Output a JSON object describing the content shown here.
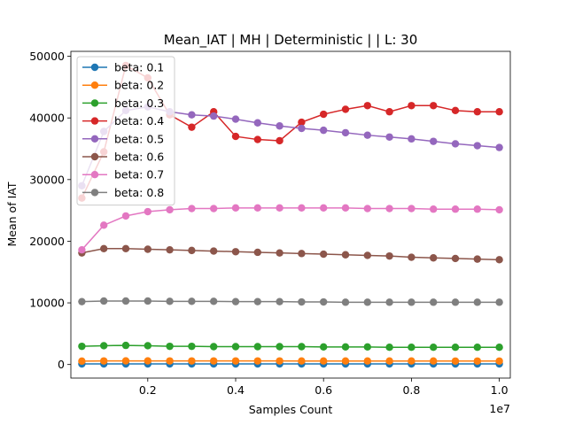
{
  "chart_data": {
    "type": "line",
    "title": "Mean_IAT  | MH | Deterministic |  | L: 30",
    "xlabel": "Samples Count",
    "ylabel": "Mean of IAT",
    "x_offset_label": "1e7",
    "x_scale": 10000000,
    "xlim": [
      0.025,
      1.025
    ],
    "ylim": [
      -2200,
      50800
    ],
    "x_ticks": [
      0.2,
      0.4,
      0.6,
      0.8,
      1.0
    ],
    "x_tick_labels": [
      "0.2",
      "0.4",
      "0.6",
      "0.8",
      "1.0"
    ],
    "y_ticks": [
      0,
      10000,
      20000,
      30000,
      40000,
      50000
    ],
    "y_tick_labels": [
      "0",
      "10000",
      "20000",
      "30000",
      "40000",
      "50000"
    ],
    "grid": false,
    "legend_position": "upper-left",
    "x": [
      0.05,
      0.1,
      0.15,
      0.2,
      0.25,
      0.3,
      0.35,
      0.4,
      0.45,
      0.5,
      0.55,
      0.6,
      0.65,
      0.7,
      0.75,
      0.8,
      0.85,
      0.9,
      0.95,
      1.0
    ],
    "series": [
      {
        "name": "beta: 0.1",
        "color": "#1f77b4",
        "values": [
          100,
          100,
          100,
          100,
          100,
          100,
          100,
          100,
          100,
          100,
          100,
          100,
          100,
          100,
          100,
          100,
          100,
          100,
          100,
          100
        ]
      },
      {
        "name": "beta: 0.2",
        "color": "#ff7f0e",
        "values": [
          550,
          580,
          590,
          590,
          580,
          580,
          580,
          580,
          580,
          580,
          570,
          570,
          570,
          570,
          570,
          570,
          570,
          560,
          560,
          560
        ]
      },
      {
        "name": "beta: 0.3",
        "color": "#2ca02c",
        "values": [
          2950,
          3050,
          3100,
          3050,
          2950,
          2950,
          2900,
          2900,
          2900,
          2900,
          2900,
          2850,
          2850,
          2850,
          2800,
          2800,
          2800,
          2800,
          2800,
          2800
        ]
      },
      {
        "name": "beta: 0.4",
        "color": "#d62728",
        "values": [
          27000,
          34500,
          48500,
          46500,
          40500,
          38500,
          41000,
          37000,
          36500,
          36300,
          39300,
          40600,
          41400,
          42000,
          41000,
          42000,
          42000,
          41200,
          41000,
          41000
        ]
      },
      {
        "name": "beta: 0.5",
        "color": "#9467bd",
        "values": [
          29000,
          37800,
          41200,
          41800,
          41000,
          40500,
          40300,
          39800,
          39200,
          38700,
          38300,
          38000,
          37600,
          37200,
          36900,
          36600,
          36200,
          35800,
          35500,
          35200
        ]
      },
      {
        "name": "beta: 0.6",
        "color": "#8c564b",
        "values": [
          18100,
          18800,
          18800,
          18700,
          18600,
          18500,
          18400,
          18300,
          18200,
          18100,
          18000,
          17900,
          17800,
          17700,
          17600,
          17400,
          17300,
          17200,
          17100,
          17000
        ]
      },
      {
        "name": "beta: 0.7",
        "color": "#e377c2",
        "values": [
          18600,
          22600,
          24100,
          24800,
          25100,
          25300,
          25300,
          25400,
          25400,
          25400,
          25400,
          25400,
          25400,
          25300,
          25300,
          25300,
          25200,
          25200,
          25200,
          25100
        ]
      },
      {
        "name": "beta: 0.8",
        "color": "#7f7f7f",
        "values": [
          10200,
          10300,
          10300,
          10300,
          10250,
          10250,
          10250,
          10200,
          10200,
          10200,
          10150,
          10150,
          10100,
          10100,
          10100,
          10100,
          10100,
          10100,
          10100,
          10100
        ]
      }
    ]
  }
}
